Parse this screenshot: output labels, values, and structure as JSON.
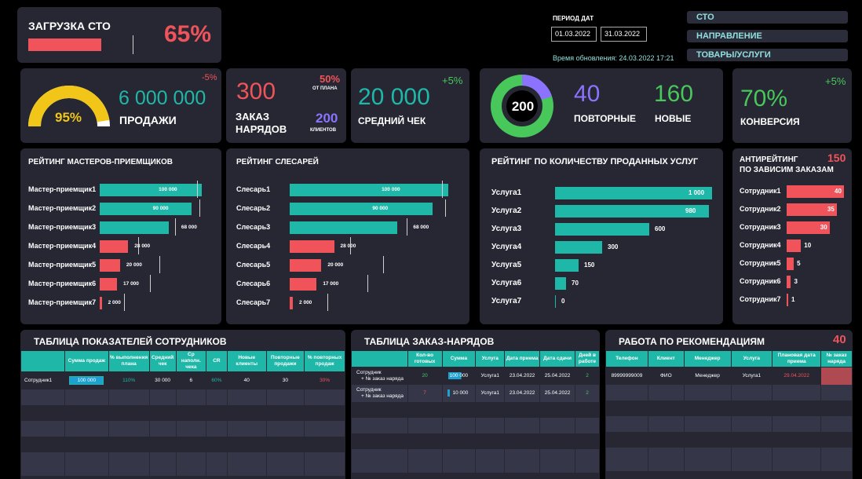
{
  "header": {
    "load_title": "ЗАГРУЗКА СТО",
    "load_value": "65%",
    "load_fraction": 0.65,
    "period_label": "ПЕРИОД ДАТ",
    "date_from": "01.03.2022",
    "date_to": "31.03.2022",
    "update_time": "Время обновления: 24.03.2022 17:21",
    "filters": [
      "СТО",
      "НАПРАВЛЕНИЕ",
      "ТОВАРЫ/УСЛУГИ"
    ]
  },
  "kpi": {
    "sales": {
      "gauge_value": "95%",
      "gauge_fraction": 0.95,
      "amount": "6 000 000",
      "label": "ПРОДАЖИ",
      "delta": "-5%"
    },
    "orders": {
      "count": "300",
      "label_line1": "ЗАКАЗ",
      "label_line2": "НАРЯДОВ",
      "plan_pct": "50%",
      "plan_label": "ОТ ПЛАНА",
      "clients": "200",
      "clients_label": "КЛИЕНТОВ"
    },
    "avg_check": {
      "amount": "20 000",
      "label": "СРЕДНИЙ ЧЕК",
      "delta": "+5%"
    },
    "clients": {
      "total": "200",
      "repeat_count": "40",
      "repeat_label": "ПОВТОРНЫЕ",
      "new_count": "160",
      "new_label": "НОВЫЕ",
      "repeat_fraction": 0.2
    },
    "conversion": {
      "value": "70%",
      "label": "КОНВЕРСИЯ",
      "delta": "+5%"
    }
  },
  "colors": {
    "teal": "#1fb8a8",
    "red": "#f0545a",
    "purple": "#8c73ff",
    "green": "#48c85a",
    "yellow": "#f2c618",
    "panel": "#262733"
  },
  "chart_data": [
    {
      "type": "bar",
      "title": "РЕЙТИНГ МАСТЕРОВ-ПРИЕМЩИКОВ",
      "categories": [
        "Мастер-приемщик1",
        "Мастер-приемщик2",
        "Мастер-приемщик3",
        "Мастер-приемщик4",
        "Мастер-приемщик5",
        "Мастер-приемщик6",
        "Мастер-приемщик7"
      ],
      "values": [
        100000,
        90000,
        68000,
        28000,
        20000,
        17000,
        2000
      ],
      "labels": [
        "100 000",
        "90 000",
        "68 000",
        "28 000",
        "20 000",
        "17 000",
        "2 000"
      ],
      "targets": [
        96000,
        98000,
        74000,
        38000,
        59000,
        49000,
        24000
      ],
      "max": 108000
    },
    {
      "type": "bar",
      "title": "РЕЙТИНГ СЛЕСАРЕЙ",
      "categories": [
        "Слесарь1",
        "Слесарь2",
        "Слесарь3",
        "Слесарь4",
        "Слесарь5",
        "Слесарь6",
        "Слесарь7"
      ],
      "values": [
        100000,
        90000,
        68000,
        28000,
        20000,
        17000,
        2000
      ],
      "labels": [
        "100 000",
        "90 000",
        "68 000",
        "28 000",
        "20 000",
        "17 000",
        "2 000"
      ],
      "targets": [
        96000,
        98000,
        74000,
        38000,
        59000,
        49000,
        24000
      ],
      "max": 108000
    },
    {
      "type": "bar",
      "title": "РЕЙТИНГ ПО КОЛИЧЕСТВУ ПРОДАННЫХ УСЛУГ",
      "categories": [
        "Услуга1",
        "Услуга2",
        "Услуга3",
        "Услуга4",
        "Услуга5",
        "Услуга6",
        "Услуга7"
      ],
      "values": [
        1000,
        980,
        600,
        300,
        150,
        70,
        0
      ],
      "labels": [
        "1 000",
        "980",
        "600",
        "300",
        "150",
        "70",
        "0"
      ],
      "max": 1000
    },
    {
      "type": "bar",
      "title": "АНТИРЕЙТИНГ ПО ЗАВИСИМ ЗАКАЗАМ",
      "total": "150",
      "categories": [
        "Сотрудник1",
        "Сотрудник2",
        "Сотрудник3",
        "Сотрудник4",
        "Сотрудник5",
        "Сотрудник6",
        "Сотрудник7"
      ],
      "values": [
        40,
        35,
        30,
        10,
        5,
        3,
        1
      ],
      "labels": [
        "40",
        "35",
        "30",
        "10",
        "5",
        "3",
        "1"
      ],
      "max": 40
    }
  ],
  "chart_titles": {
    "masters_line1": "РЕЙТИНГ МАСТЕРОВ-ПРИЕМЩИКОВ",
    "locksmiths": "РЕЙТИНГ СЛЕСАРЕЙ",
    "services": "РЕЙТИНГ ПО КОЛИЧЕСТВУ ПРОДАННЫХ УСЛУГ",
    "anti_line1": "АНТИРЕЙТИНГ",
    "anti_line2": "ПО ЗАВИСИМ ЗАКАЗАМ",
    "anti_total": "150"
  },
  "employees_table": {
    "title": "ТАБЛИЦА ПОКАЗАТЕЛЕЙ СОТРУДНИКОВ",
    "headers": [
      "",
      "Сумма продаж",
      "% выполнения плана",
      "Средний чек",
      "Ср наполн. чека",
      "CR",
      "Новые клиенты",
      "Повторные продажи",
      "% повторных продаж"
    ],
    "row": {
      "name": "Сотрудник1",
      "sales": "100 000",
      "plan_pct": "110%",
      "avg_check": "30 000",
      "fill": "6",
      "cr": "60%",
      "new_clients": "40",
      "repeat_sales": "30",
      "repeat_pct": "30%"
    }
  },
  "orders_table": {
    "title": "ТАБЛИЦА ЗАКАЗ-НАРЯДОВ",
    "headers": [
      "",
      "Кол-во готовых",
      "Сумма",
      "Услуга",
      "Дата приема",
      "Дата сдачи",
      "Дней в работе"
    ],
    "rows": [
      {
        "name1": "Сотрудник",
        "name2": "+ № заказ наряда",
        "ready": "20",
        "sum": "100 000",
        "service": "Услуга1",
        "date_in": "23.04.2022",
        "date_out": "25.04.2022",
        "days": "2"
      },
      {
        "name1": "Сотрудник",
        "name2": "+ № заказ наряда",
        "ready": "7",
        "sum": "10 000",
        "service": "Услуга1",
        "date_in": "23.04.2022",
        "date_out": "25.04.2022",
        "days": "2"
      }
    ]
  },
  "reco_table": {
    "title": "РАБОТА ПО РЕКОМЕНДАЦИЯМ",
    "count": "40",
    "headers": [
      "Телефон",
      "Клиент",
      "Менеджер",
      "Услуга",
      "Плановая дата приема",
      "№ заказ наряда"
    ],
    "row": {
      "phone": "89999999009",
      "client": "ФИО",
      "manager": "Менеджер",
      "service": "Услуга1",
      "plan_date": "29.04.2022",
      "order_no": ""
    }
  }
}
